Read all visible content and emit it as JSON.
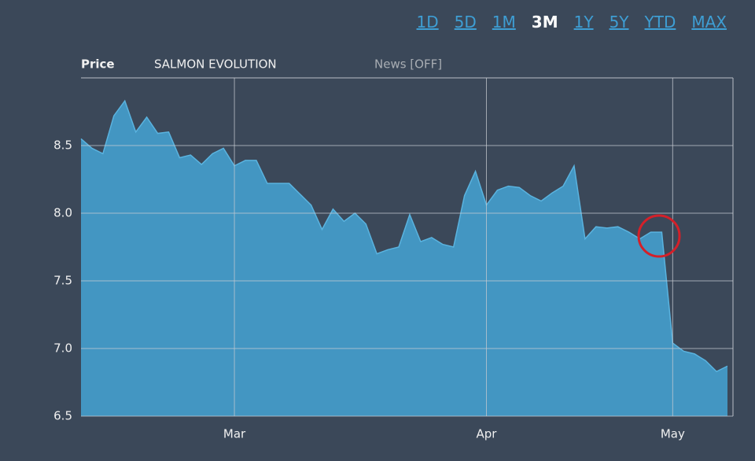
{
  "header": {
    "label": "Price",
    "name": "SALMON EVOLUTION",
    "news": "News [OFF]"
  },
  "range_buttons": {
    "labels": [
      "1D",
      "5D",
      "1M",
      "3M",
      "1Y",
      "5Y",
      "YTD",
      "MAX"
    ],
    "active": "3M"
  },
  "chart_data": {
    "type": "area",
    "color": "#4396c2",
    "line_color": "#5ab3df",
    "grid": true,
    "categories": [
      null,
      null,
      null,
      null,
      null,
      null,
      null,
      null,
      null,
      null,
      null,
      null,
      null,
      null,
      "Mar",
      null,
      null,
      null,
      null,
      null,
      null,
      null,
      null,
      null,
      null,
      null,
      null,
      null,
      null,
      null,
      null,
      null,
      null,
      null,
      null,
      null,
      null,
      "Apr",
      null,
      null,
      null,
      null,
      null,
      null,
      null,
      null,
      null,
      null,
      null,
      null,
      null,
      null,
      null,
      null,
      "May",
      null,
      null,
      null,
      null,
      null
    ],
    "values": [
      8.55,
      8.48,
      8.44,
      8.72,
      8.83,
      8.6,
      8.71,
      8.59,
      8.6,
      8.41,
      8.43,
      8.36,
      8.44,
      8.48,
      8.35,
      8.39,
      8.39,
      8.22,
      8.22,
      8.22,
      8.14,
      8.06,
      7.88,
      8.03,
      7.94,
      8.0,
      7.92,
      7.7,
      7.73,
      7.75,
      7.99,
      7.79,
      7.82,
      7.77,
      7.75,
      8.13,
      8.31,
      8.06,
      8.17,
      8.2,
      8.19,
      8.13,
      8.09,
      8.15,
      8.2,
      8.35,
      7.81,
      7.9,
      7.89,
      7.9,
      7.86,
      7.81,
      7.86,
      7.86,
      7.04,
      6.98,
      6.96,
      6.91,
      6.83,
      6.87
    ],
    "ylim": [
      6.5,
      9.0
    ],
    "yticks": [
      6.5,
      {
        "value": 7,
        "label": "7.0"
      },
      7.5,
      {
        "value": 8,
        "label": "8.0"
      },
      8.5
    ]
  }
}
